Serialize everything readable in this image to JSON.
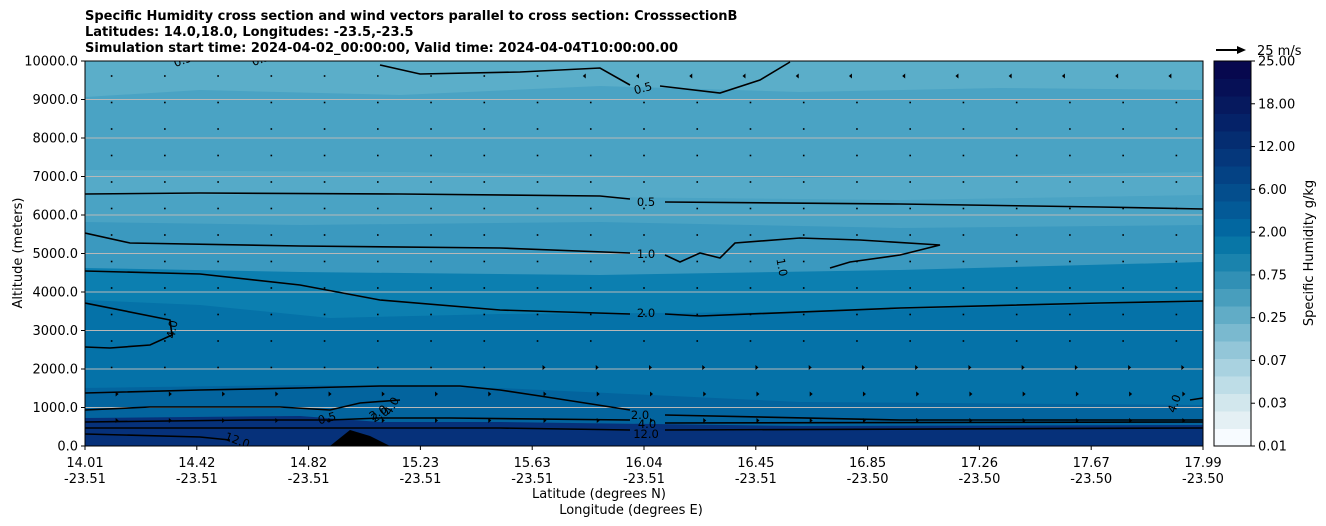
{
  "chart_data": {
    "type": "contour",
    "title_lines": [
      "Specific Humidity cross section and wind vectors parallel to cross section: CrosssectionB",
      "Latitudes: 14.0,18.0, Longitudes: -23.5,-23.5",
      "Simulation start time: 2024-04-02_00:00:00, Valid time: 2024-04-04T10:00:00.00"
    ],
    "ylabel": "Altitude (meters)",
    "xlabel_lines": [
      "Latitude (degrees N)",
      "Longitude (degrees E)"
    ],
    "ylim": [
      0,
      10000
    ],
    "y_ticks": [
      "0.0",
      "1000.0",
      "2000.0",
      "3000.0",
      "4000.0",
      "5000.0",
      "6000.0",
      "7000.0",
      "8000.0",
      "9000.0",
      "10000.0"
    ],
    "x_ticks": [
      {
        "lat": "14.01",
        "lon": "-23.51"
      },
      {
        "lat": "14.42",
        "lon": "-23.51"
      },
      {
        "lat": "14.82",
        "lon": "-23.51"
      },
      {
        "lat": "15.23",
        "lon": "-23.51"
      },
      {
        "lat": "15.63",
        "lon": "-23.51"
      },
      {
        "lat": "16.04",
        "lon": "-23.51"
      },
      {
        "lat": "16.45",
        "lon": "-23.51"
      },
      {
        "lat": "16.85",
        "lon": "-23.50"
      },
      {
        "lat": "17.26",
        "lon": "-23.50"
      },
      {
        "lat": "17.67",
        "lon": "-23.50"
      },
      {
        "lat": "17.99",
        "lon": "-23.50"
      }
    ],
    "grid": "horizontal",
    "colorbar": {
      "label": "Specific Humidity g/kg",
      "ticks": [
        "0.01",
        "0.03",
        "0.07",
        "0.25",
        "0.75",
        "2.00",
        "6.00",
        "12.00",
        "18.00",
        "25.00"
      ],
      "colors": [
        "#f7fbff",
        "#e4f0f4",
        "#d2e7ed",
        "#bedde7",
        "#a9d2e0",
        "#93c6d8",
        "#7ab9cf",
        "#61acc6",
        "#489ebd",
        "#3190b5",
        "#1a83ad",
        "#0876a6",
        "#0267a0",
        "#035a97",
        "#044e8d",
        "#044284",
        "#05377b",
        "#052d71",
        "#052268",
        "#06195e",
        "#061056",
        "#07084e"
      ]
    },
    "quiver_key": {
      "label": "25 m/s",
      "speed": 25
    },
    "contour_labels": [
      "0.5",
      "0.5",
      "0.5",
      "0.5",
      "1.0",
      "1.0",
      "2.0",
      "2.0",
      "2.0",
      "4.0",
      "4.0",
      "4.0",
      "4.0",
      "12.0",
      "12.0",
      "0.5",
      "2.0"
    ]
  }
}
